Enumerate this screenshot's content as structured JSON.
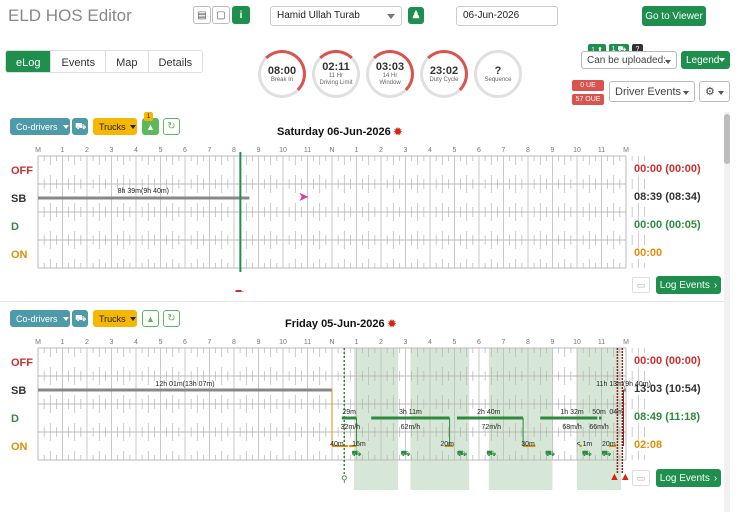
{
  "app": {
    "title": "ELD HOS Editor"
  },
  "header": {
    "driver": "Hamid Ullah Turab",
    "date": "06-Jun-2026",
    "go_to_viewer": "Go to Viewer"
  },
  "tabs": [
    {
      "label": "eLog"
    },
    {
      "label": "Events"
    },
    {
      "label": "Map"
    },
    {
      "label": "Details"
    }
  ],
  "gauges": [
    {
      "value": "08:00",
      "sub": "Break In",
      "sub2": ""
    },
    {
      "value": "02:11",
      "sub": "11 Hr",
      "sub2": "Driving Limit"
    },
    {
      "value": "03:03",
      "sub": "14 Hr",
      "sub2": "Window"
    },
    {
      "value": "23:02",
      "sub": "Duty Cycle",
      "sub2": ""
    },
    {
      "value": "?",
      "sub": "Sequence",
      "sub2": ""
    }
  ],
  "right_panel": {
    "badge_a": "1 ⬆",
    "badge_b": "1 ⛟",
    "help": "?",
    "upload_select": "Can be uploaded:",
    "legend": "Legend",
    "ue_badge": "0 UE",
    "oue_badge": "57 OUE",
    "driver_events": "Driver Events"
  },
  "status_labels": {
    "off": "OFF",
    "sb": "SB",
    "d": "D",
    "on": "ON"
  },
  "hours": [
    "M",
    "1",
    "2",
    "3",
    "4",
    "5",
    "6",
    "7",
    "8",
    "9",
    "10",
    "11",
    "N",
    "1",
    "2",
    "3",
    "4",
    "5",
    "6",
    "7",
    "8",
    "9",
    "10",
    "11",
    "M"
  ],
  "colors": {
    "accent": "#1e8f4d",
    "off": "#c9302c",
    "sb": "#333333",
    "d": "#2e8b3d",
    "on": "#e08e0b"
  },
  "days": [
    {
      "co_drivers": "Co-drivers",
      "trucks": "Trucks",
      "trucks_badge": "1",
      "title": "Saturday 06-Jun-2026",
      "totals": {
        "off": "00:00 (00:00)",
        "sb": "08:39 (08:34)",
        "d": "00:00 (00:05)",
        "on": "00:00"
      },
      "seg_labels": [
        "8h 39m(9h 40m)"
      ],
      "log_events": "Log Events"
    },
    {
      "co_drivers": "Co-drivers",
      "trucks": "Trucks",
      "title": "Friday 05-Jun-2026",
      "totals": {
        "off": "00:00 (00:00)",
        "sb": "13:03 (10:54)",
        "d": "08:49 (11:18)",
        "on": "02:08"
      },
      "seg_labels": [
        "12h 01m(13h 07m)",
        "11h 13m(9h 40m)",
        "29m",
        "32m/h",
        "3h 11m",
        "62m/h",
        "2h 40m",
        "72m/h",
        "1h 32m",
        "50m",
        "04m",
        "68m/h",
        "66m/h",
        "40m",
        "16m",
        "20m",
        "30m",
        "< 1m",
        "20m"
      ],
      "log_events": "Log Events"
    }
  ]
}
